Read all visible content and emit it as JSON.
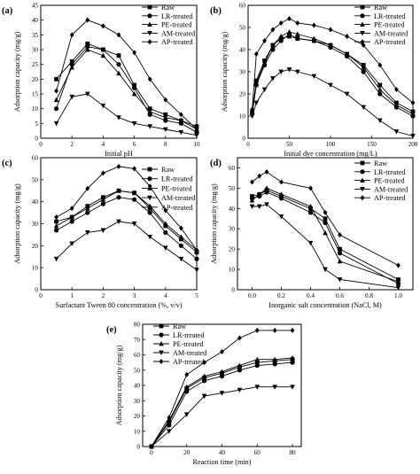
{
  "chart_data": [
    {
      "type": "line",
      "panel_label": "(a)",
      "xlabel": "Initial pH",
      "ylabel": "Adsorption capacity (mg/g)",
      "xlim": [
        0,
        10
      ],
      "ylim": [
        0,
        45
      ],
      "xticks": [
        0,
        2,
        4,
        6,
        8,
        10
      ],
      "yticks": [
        0,
        5,
        10,
        15,
        20,
        25,
        30,
        35,
        40,
        45
      ],
      "legend_position": "top-right",
      "x": [
        1,
        2,
        3,
        4,
        5,
        6,
        7,
        8,
        9,
        10
      ],
      "series": [
        {
          "name": "Raw",
          "marker": "square",
          "values": [
            20,
            26,
            32,
            30,
            28,
            18,
            10,
            8,
            6,
            4
          ]
        },
        {
          "name": "LR-treated",
          "marker": "circle",
          "values": [
            10,
            25,
            31,
            30,
            25,
            17,
            8,
            6,
            5,
            2
          ]
        },
        {
          "name": "PE-treated",
          "marker": "triangle-up",
          "values": [
            13,
            24,
            30,
            28,
            22,
            15,
            9,
            7,
            6,
            3
          ]
        },
        {
          "name": "AM-treated",
          "marker": "triangle-down",
          "values": [
            5,
            14,
            15,
            11,
            7,
            5,
            4,
            3,
            2,
            1
          ]
        },
        {
          "name": "AP-treated",
          "marker": "diamond",
          "values": [
            16,
            35,
            40,
            38,
            35,
            29,
            20,
            13,
            8,
            3
          ]
        }
      ]
    },
    {
      "type": "line",
      "panel_label": "(b)",
      "xlabel": "Initial dye concentration (mg/L)",
      "ylabel": "Adsorption capacity (mg/g)",
      "xlim": [
        0,
        200
      ],
      "ylim": [
        0,
        60
      ],
      "xticks": [
        0,
        50,
        100,
        150,
        200
      ],
      "yticks": [
        0,
        10,
        20,
        30,
        40,
        50,
        60
      ],
      "legend_position": "top-right",
      "x": [
        5,
        10,
        20,
        30,
        40,
        50,
        60,
        80,
        100,
        120,
        140,
        160,
        180,
        200
      ],
      "series": [
        {
          "name": "Raw",
          "marker": "square",
          "values": [
            12,
            26,
            35,
            42,
            45,
            46,
            45,
            44,
            42,
            38,
            33,
            24,
            16,
            12
          ]
        },
        {
          "name": "LR-treated",
          "marker": "circle",
          "values": [
            11,
            24,
            33,
            40,
            44,
            47,
            45,
            44,
            41,
            37,
            30,
            20,
            14,
            10
          ]
        },
        {
          "name": "PE-treated",
          "marker": "triangle-up",
          "values": [
            12,
            25,
            34,
            42,
            46,
            48,
            47,
            45,
            42,
            38,
            32,
            22,
            15,
            11
          ]
        },
        {
          "name": "AM-treated",
          "marker": "triangle-down",
          "values": [
            10,
            16,
            22,
            27,
            30,
            31,
            30,
            28,
            24,
            20,
            14,
            8,
            3,
            1
          ]
        },
        {
          "name": "AP-treated",
          "marker": "diamond",
          "values": [
            13,
            38,
            44,
            49,
            52,
            54,
            52,
            51,
            49,
            46,
            42,
            33,
            22,
            16
          ]
        }
      ]
    },
    {
      "type": "line",
      "panel_label": "(c)",
      "xlabel": "Surfactant Tween 80 concentration (%, v/v)",
      "ylabel": "Adsorption capacity (mg/g)",
      "xlim": [
        0,
        5
      ],
      "ylim": [
        0,
        60
      ],
      "xticks": [
        0,
        1,
        2,
        3,
        4,
        5
      ],
      "yticks": [
        0,
        10,
        20,
        30,
        40,
        50,
        60
      ],
      "legend_position": "top-right",
      "x": [
        0.5,
        1,
        1.5,
        2,
        2.5,
        3,
        3.5,
        4,
        4.5,
        5
      ],
      "series": [
        {
          "name": "Raw",
          "marker": "square",
          "values": [
            31,
            33,
            38,
            42,
            45,
            44,
            37,
            29,
            23,
            17
          ]
        },
        {
          "name": "LR-treated",
          "marker": "circle",
          "values": [
            27,
            31,
            35,
            39,
            42,
            41,
            35,
            26,
            20,
            14
          ]
        },
        {
          "name": "PE-treated",
          "marker": "triangle-up",
          "values": [
            29,
            33,
            37,
            41,
            45,
            44,
            38,
            30,
            24,
            18
          ]
        },
        {
          "name": "AM-treated",
          "marker": "triangle-down",
          "values": [
            14,
            21,
            26,
            27,
            31,
            30,
            24,
            19,
            14,
            9
          ]
        },
        {
          "name": "AP-treated",
          "marker": "diamond",
          "values": [
            33,
            37,
            46,
            53,
            56,
            55,
            47,
            36,
            28,
            18
          ]
        }
      ]
    },
    {
      "type": "line",
      "panel_label": "(d)",
      "xlabel": "Inorganic salt concentration (NaCl, M)",
      "ylabel": "Adsorption capacity (mg/g)",
      "xlim": [
        -0.1,
        1.1
      ],
      "ylim": [
        0,
        65
      ],
      "xticks": [
        0.0,
        0.2,
        0.4,
        0.6,
        0.8,
        1.0
      ],
      "yticks": [
        0,
        10,
        20,
        30,
        40,
        50,
        60
      ],
      "legend_position": "top-right",
      "x": [
        0,
        0.05,
        0.1,
        0.2,
        0.4,
        0.5,
        0.6,
        1.0
      ],
      "series": [
        {
          "name": "Raw",
          "marker": "square",
          "values": [
            46,
            47,
            49,
            46,
            40,
            35,
            20,
            5
          ]
        },
        {
          "name": "LR-treated",
          "marker": "circle",
          "values": [
            45,
            46,
            48,
            45,
            38,
            33,
            18,
            3
          ]
        },
        {
          "name": "PE-treated",
          "marker": "triangle-up",
          "values": [
            44,
            47,
            50,
            47,
            41,
            28,
            14,
            4
          ]
        },
        {
          "name": "AM-treated",
          "marker": "triangle-down",
          "values": [
            41,
            41,
            42,
            36,
            23,
            10,
            5,
            1
          ]
        },
        {
          "name": "AP-treated",
          "marker": "diamond",
          "values": [
            53,
            56,
            58,
            53,
            50,
            38,
            27,
            12
          ]
        }
      ]
    },
    {
      "type": "line",
      "panel_label": "(e)",
      "xlabel": "Reaction time (min)",
      "ylabel": "Adsorption capacity (mg/g)",
      "xlim": [
        -5,
        85
      ],
      "ylim": [
        0,
        80
      ],
      "xticks": [
        0,
        20,
        40,
        60,
        80
      ],
      "yticks": [
        0,
        10,
        20,
        30,
        40,
        50,
        60,
        70,
        80
      ],
      "legend_position": "top-left",
      "x": [
        0,
        10,
        20,
        30,
        40,
        50,
        60,
        70,
        80
      ],
      "series": [
        {
          "name": "Raw",
          "marker": "square",
          "values": [
            0,
            16,
            38,
            45,
            48,
            52,
            55,
            56,
            57
          ]
        },
        {
          "name": "LR-treated",
          "marker": "circle",
          "values": [
            0,
            14,
            36,
            43,
            46,
            50,
            53,
            54,
            55
          ]
        },
        {
          "name": "PE-treated",
          "marker": "triangle-up",
          "values": [
            0,
            17,
            39,
            46,
            49,
            53,
            57,
            57,
            58
          ]
        },
        {
          "name": "AM-treated",
          "marker": "triangle-down",
          "values": [
            0,
            10,
            21,
            33,
            35,
            37,
            39,
            39,
            39
          ]
        },
        {
          "name": "AP-treated",
          "marker": "diamond",
          "values": [
            0,
            19,
            47,
            55,
            62,
            71,
            76,
            76,
            76
          ]
        }
      ]
    }
  ]
}
